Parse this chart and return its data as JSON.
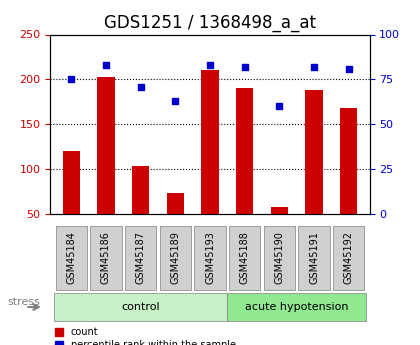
{
  "title": "GDS1251 / 1368498_a_at",
  "samples": [
    "GSM45184",
    "GSM45186",
    "GSM45187",
    "GSM45189",
    "GSM45193",
    "GSM45188",
    "GSM45190",
    "GSM45191",
    "GSM45192"
  ],
  "counts": [
    120,
    203,
    103,
    73,
    210,
    190,
    58,
    188,
    168
  ],
  "percentiles": [
    75,
    83,
    71,
    63,
    83,
    82,
    60,
    82,
    81
  ],
  "groups": [
    {
      "label": "control",
      "start": 0,
      "end": 5,
      "color": "#c8f0c8"
    },
    {
      "label": "acute hypotension",
      "start": 5,
      "end": 9,
      "color": "#90e890"
    }
  ],
  "bar_color": "#cc0000",
  "dot_color": "#0000cc",
  "ylim_left": [
    50,
    250
  ],
  "ylim_right": [
    0,
    100
  ],
  "left_ticks": [
    50,
    100,
    150,
    200,
    250
  ],
  "right_ticks": [
    0,
    25,
    50,
    75,
    100
  ],
  "grid_values": [
    100,
    150,
    200
  ],
  "background_color": "#ffffff",
  "tick_bg_color": "#d0d0d0",
  "legend_count_label": "count",
  "legend_pct_label": "percentile rank within the sample",
  "stress_label": "stress",
  "left_tick_color": "#cc0000",
  "right_tick_color": "#0000cc",
  "title_fontsize": 12,
  "tick_fontsize": 8,
  "bar_width": 0.5
}
